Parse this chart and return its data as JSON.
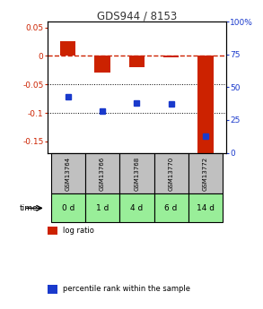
{
  "title": "GDS944 / 8153",
  "samples": [
    "GSM13764",
    "GSM13766",
    "GSM13768",
    "GSM13770",
    "GSM13772"
  ],
  "time_labels": [
    "0 d",
    "1 d",
    "4 d",
    "6 d",
    "14 d"
  ],
  "log_ratio": [
    0.025,
    -0.03,
    -0.02,
    -0.003,
    -0.17
  ],
  "percentile_rank": [
    43,
    32,
    38,
    37,
    13
  ],
  "left_ylim": [
    -0.17,
    0.06
  ],
  "right_ylim": [
    0,
    100
  ],
  "left_yticks": [
    0.05,
    0.0,
    -0.05,
    -0.1,
    -0.15
  ],
  "left_yticklabels": [
    "0.05",
    "0",
    "-0.05",
    "-0.1",
    "-0.15"
  ],
  "right_yticks": [
    100,
    75,
    50,
    25,
    0
  ],
  "right_yticklabels": [
    "100%",
    "75",
    "50",
    "25",
    "0"
  ],
  "bar_color": "#cc2200",
  "dot_color": "#1a3acc",
  "zero_line_color": "#cc2200",
  "dotted_line_color": "#000000",
  "sample_bg_color": "#c0c0c0",
  "time_bg_color": "#99ee99",
  "title_color": "#333333",
  "legend_bar_label": "log ratio",
  "legend_dot_label": "percentile rank within the sample",
  "bar_width": 0.45
}
